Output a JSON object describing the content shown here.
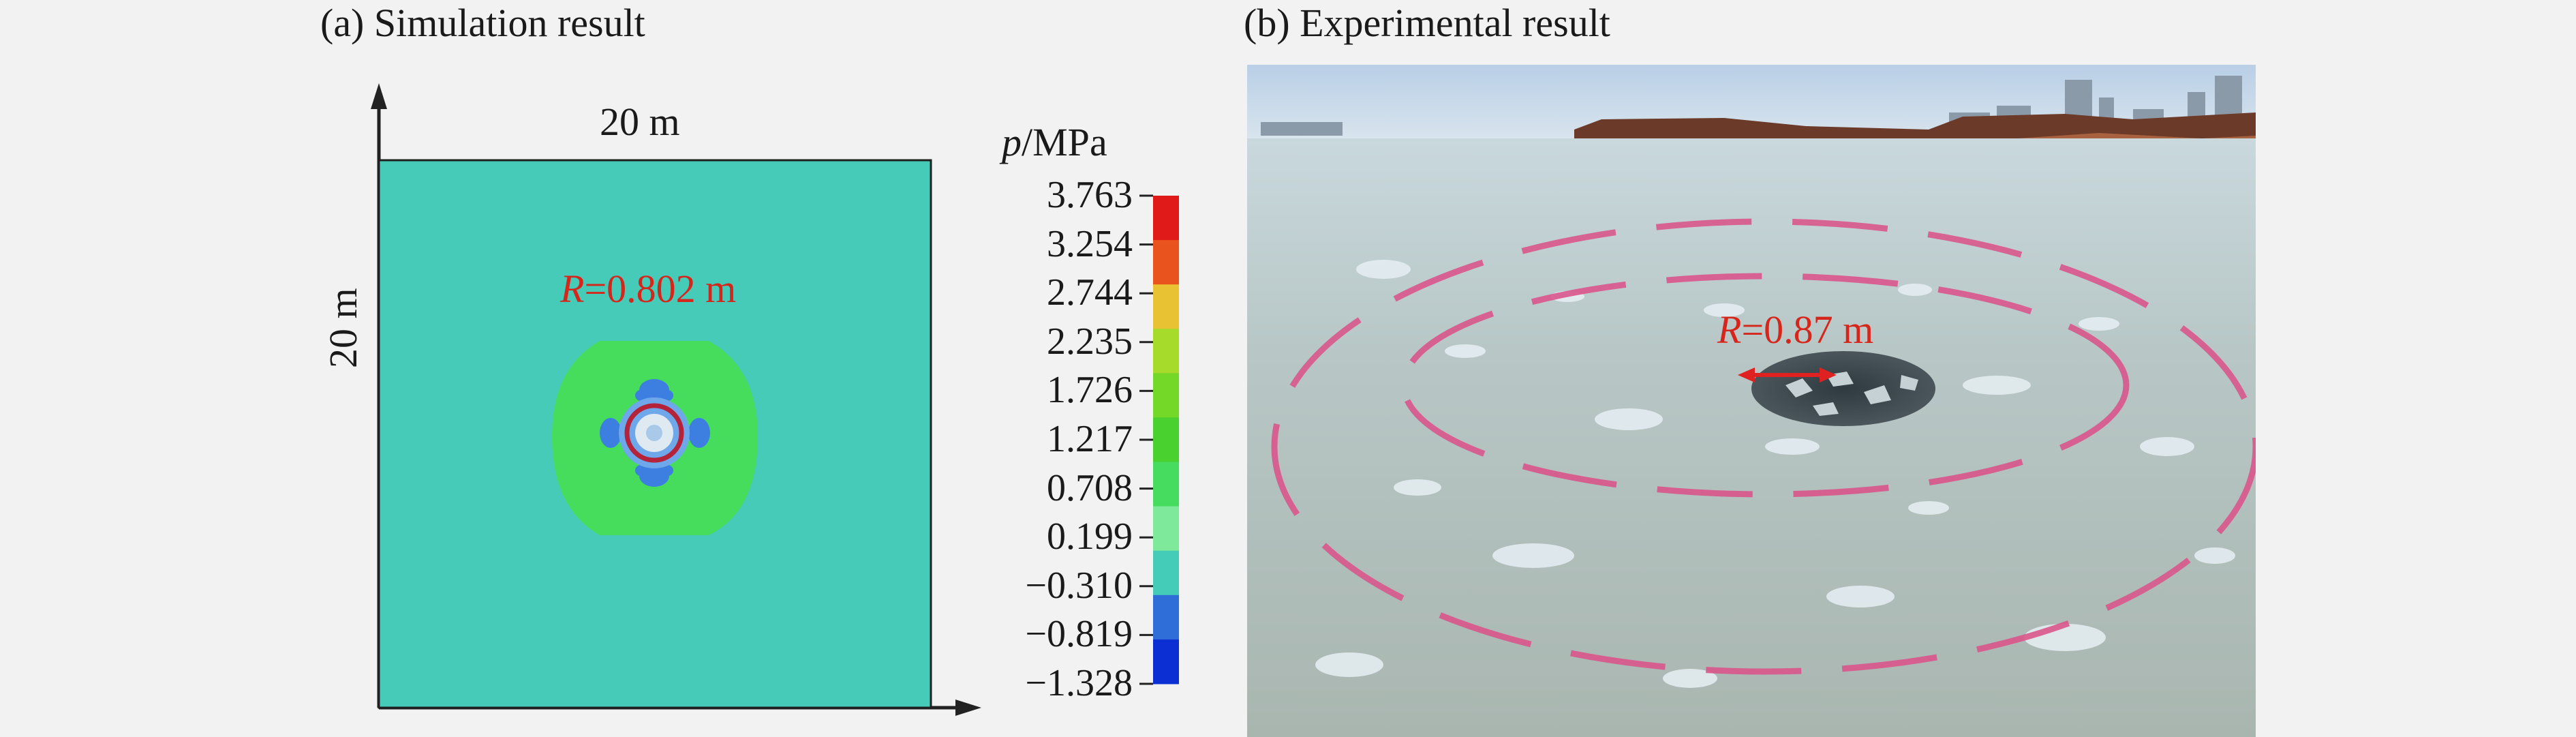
{
  "panel_a": {
    "title": "(a) Simulation result",
    "width_label": "20 m",
    "height_label": "20 m",
    "radius_symbol": "R",
    "radius_value": "=0.802 m"
  },
  "colorbar": {
    "symbol": "p",
    "unit": "/MPa",
    "ticks": [
      "3.763",
      "3.254",
      "2.744",
      "2.235",
      "1.726",
      "1.217",
      "0.708",
      "0.199",
      "−0.310",
      "−0.819",
      "−1.328"
    ],
    "colors": [
      "#e01a18",
      "#e9531d",
      "#e9c233",
      "#a6db2c",
      "#74d828",
      "#49d22f",
      "#46dc60",
      "#7ee89b",
      "#45ccb9",
      "#2f6ed8",
      "#0b2fd2"
    ]
  },
  "panel_b": {
    "title": "(b) Experimental result",
    "radius_symbol": "R",
    "radius_value": "=0.87 m"
  }
}
